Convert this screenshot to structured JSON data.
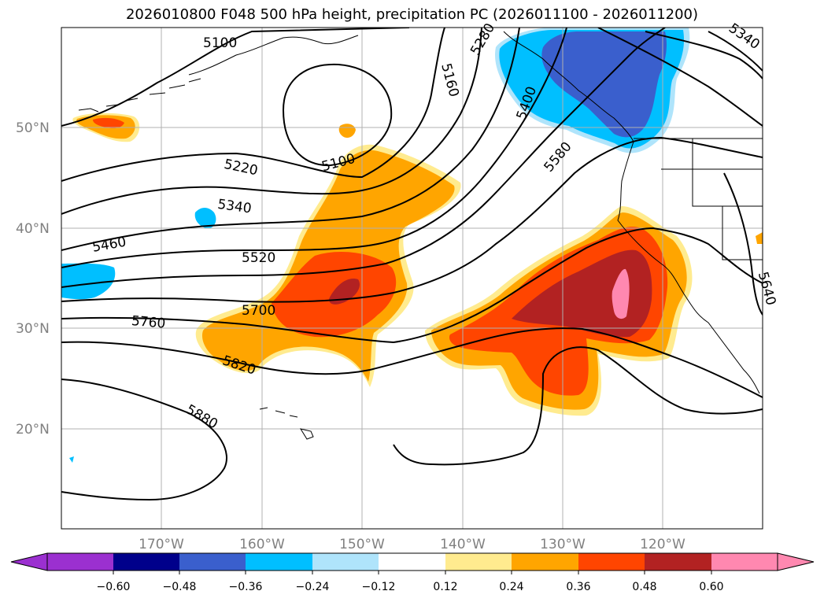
{
  "title": "2026010800 F048 500 hPa height, precipitation PC (2026011100 - 2026011200)",
  "map": {
    "lat_labels": [
      "50°N",
      "40°N",
      "30°N",
      "20°N"
    ],
    "lon_labels": [
      "170°W",
      "160°W",
      "150°W",
      "140°W",
      "130°W",
      "120°W"
    ],
    "contour_labels": [
      "5100",
      "5160",
      "5280",
      "5340",
      "5100",
      "5220",
      "5340",
      "5400",
      "5580",
      "5460",
      "5520",
      "5700",
      "5760",
      "5820",
      "5880",
      "5640"
    ]
  },
  "colorbar": {
    "ticks": [
      "−0.60",
      "−0.48",
      "−0.36",
      "−0.24",
      "−0.12",
      "0.12",
      "0.24",
      "0.36",
      "0.48",
      "0.60"
    ],
    "colors": [
      "#9b30d0",
      "#00008b",
      "#3a5fcd",
      "#00bfff",
      "#afe4fb",
      "#ffffff",
      "#ffeb8f",
      "#ffa500",
      "#ff4500",
      "#b22222",
      "#ff88b0",
      "#ff88b0"
    ]
  },
  "colors": {
    "grid": "#b0b0b0",
    "contour": "#000000",
    "axis_label": "#808080"
  }
}
